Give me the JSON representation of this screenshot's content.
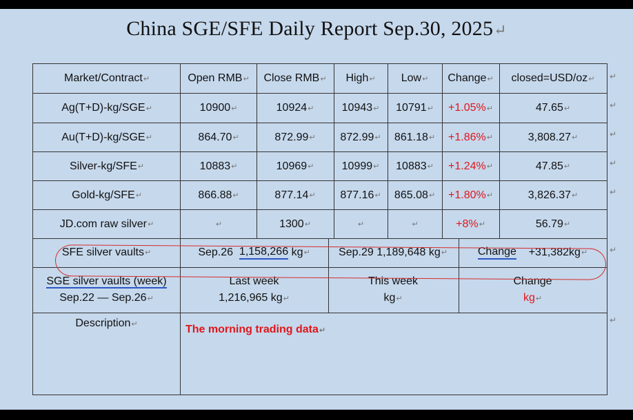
{
  "title": "China SGE/SFE Daily Report Sep.30, 2025",
  "header": [
    "Market/Contract",
    "Open RMB",
    "Close RMB",
    "High",
    "Low",
    "Change",
    "closed=USD/oz"
  ],
  "rows": [
    [
      "Ag(T+D)-kg/SGE",
      "10900",
      "10924",
      "10943",
      "10791",
      "+1.05%",
      "47.65"
    ],
    [
      "Au(T+D)-kg/SGE",
      "864.70",
      "872.99",
      "872.99",
      "861.18",
      "+1.86%",
      "3,808.27"
    ],
    [
      "Silver-kg/SFE",
      "10883",
      "10969",
      "10999",
      "10883",
      "+1.24%",
      "47.85"
    ],
    [
      "Gold-kg/SFE",
      "866.88",
      "877.14",
      "877.16",
      "865.08",
      "+1.80%",
      "3,826.37"
    ],
    [
      "JD.com raw silver",
      "",
      "1300",
      "",
      "",
      "+8%",
      "56.79"
    ]
  ],
  "sfe_vaults": {
    "label": "SFE silver vaults",
    "prev_date": "Sep.26",
    "prev_value": "1,158,266",
    "prev_unit": "kg",
    "curr": "Sep.29 1,189,648 kg",
    "change_label": "Change",
    "change_value": "+31,382kg"
  },
  "sge_vaults": {
    "label_line1": "SGE silver vaults (week)",
    "label_line2": "Sep.22 — Sep.26",
    "last_week_label": "Last week",
    "last_week_value": "1,216,965 kg",
    "this_week_label": "This week",
    "this_week_value": "kg",
    "change_label": "Change",
    "change_value": "kg"
  },
  "description": {
    "label": "Description",
    "text": "The morning trading data"
  },
  "colors": {
    "page_bg": "#c6d8ec",
    "positive_change": "#e0161a",
    "annotation_ring": "#d42b2b",
    "underline": "#2b55c4"
  },
  "paragraph_mark": "↵"
}
